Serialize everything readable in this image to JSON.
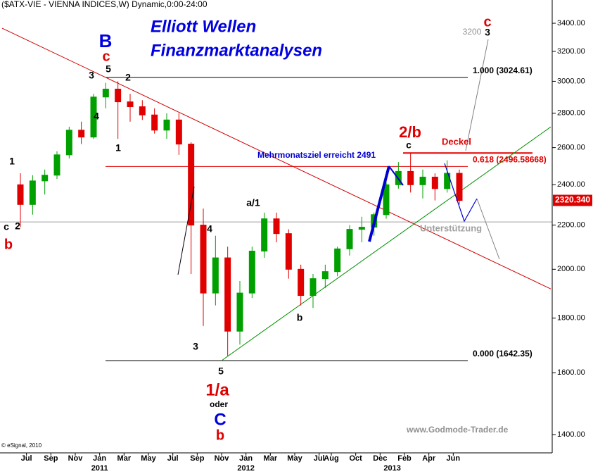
{
  "chart_data": {
    "type": "candlestick",
    "title": "($ATX-VIE - VIENNA INDICES,W) Dynamic,0:00-24:00",
    "headline": [
      "Elliott Wellen",
      "Finanzmarktanalysen"
    ],
    "source": "www.Godmode-Trader.de",
    "copyright": "© eSignal, 2010",
    "x": [
      "2010-06",
      "2010-07",
      "2010-08",
      "2010-09",
      "2010-10",
      "2010-11",
      "2010-12",
      "2011-01",
      "2011-02",
      "2011-03",
      "2011-04",
      "2011-05",
      "2011-06",
      "2011-07",
      "2011-08",
      "2011-09",
      "2011-10",
      "2011-11",
      "2011-12",
      "2012-01",
      "2012-02",
      "2012-03",
      "2012-04",
      "2012-05",
      "2012-06",
      "2012-07",
      "2012-08",
      "2012-09",
      "2012-10",
      "2012-11",
      "2012-12",
      "2013-01",
      "2013-02",
      "2013-03",
      "2013-04",
      "2013-05",
      "2013-06"
    ],
    "open": [
      2400,
      2300,
      2420,
      2450,
      2560,
      2700,
      2660,
      2900,
      2950,
      2870,
      2840,
      2790,
      2700,
      2760,
      2620,
      2200,
      1900,
      2050,
      1750,
      1900,
      2080,
      2230,
      2160,
      2000,
      1890,
      1960,
      1990,
      2090,
      2180,
      2190,
      2250,
      2400,
      2470,
      2400,
      2440,
      2380,
      2460
    ],
    "high": [
      2460,
      2450,
      2480,
      2580,
      2720,
      2750,
      2920,
      2990,
      3000,
      2920,
      2880,
      2830,
      2800,
      2800,
      2630,
      2280,
      2150,
      2100,
      1950,
      2100,
      2260,
      2260,
      2180,
      2020,
      1980,
      2020,
      2100,
      2200,
      2240,
      2260,
      2420,
      2520,
      2570,
      2480,
      2460,
      2530,
      2480
    ],
    "low": [
      2190,
      2250,
      2350,
      2430,
      2540,
      2620,
      2650,
      2830,
      2650,
      2750,
      2760,
      2680,
      2650,
      2560,
      1980,
      1770,
      1850,
      1660,
      1700,
      1880,
      2050,
      2120,
      1960,
      1850,
      1840,
      1920,
      1970,
      2060,
      2120,
      2150,
      2230,
      2380,
      2360,
      2330,
      2320,
      2360,
      2300
    ],
    "close": [
      2300,
      2420,
      2450,
      2560,
      2700,
      2660,
      2900,
      2950,
      2870,
      2840,
      2790,
      2700,
      2760,
      2620,
      2200,
      1900,
      2050,
      1750,
      1900,
      2080,
      2230,
      2160,
      2000,
      1890,
      1960,
      1990,
      2090,
      2180,
      2190,
      2250,
      2400,
      2470,
      2400,
      2440,
      2380,
      2460,
      2320
    ],
    "up_color": "#00a000",
    "down_color": "#e00000",
    "xlim": [
      "2010-05",
      "2014-02"
    ],
    "xticks": [
      {
        "value": "2010-07",
        "label": "Jul"
      },
      {
        "value": "2010-09",
        "label": "Sep"
      },
      {
        "value": "2010-11",
        "label": "Nov"
      },
      {
        "value": "2011-01",
        "label": "Jan"
      },
      {
        "value": "2011-03",
        "label": "Mar"
      },
      {
        "value": "2011-05",
        "label": "May"
      },
      {
        "value": "2011-07",
        "label": "Jul"
      },
      {
        "value": "2011-09",
        "label": "Sep"
      },
      {
        "value": "2011-11",
        "label": "Nov"
      },
      {
        "value": "2012-01",
        "label": "Jan"
      },
      {
        "value": "2012-03",
        "label": "Mar"
      },
      {
        "value": "2012-05",
        "label": "May"
      },
      {
        "value": "2012-07",
        "label": "Jul"
      },
      {
        "value": "2012-08",
        "label": "Aug"
      },
      {
        "value": "2012-10",
        "label": "Oct"
      },
      {
        "value": "2012-12",
        "label": "Dec"
      },
      {
        "value": "2013-02",
        "label": "Feb"
      },
      {
        "value": "2013-04",
        "label": "Apr"
      },
      {
        "value": "2013-06",
        "label": "Jun"
      }
    ],
    "year_ticks": [
      {
        "value": "2011-01",
        "label": "2011"
      },
      {
        "value": "2012-01",
        "label": "2012"
      },
      {
        "value": "2013-01",
        "label": "2013"
      }
    ],
    "ylim": [
      1346,
      3575
    ],
    "log_scale": true,
    "yticks": [
      {
        "value": 1400,
        "label": "1400.00"
      },
      {
        "value": 1600,
        "label": "1600.00"
      },
      {
        "value": 1800,
        "label": "1800.00"
      },
      {
        "value": 2000,
        "label": "2000.00"
      },
      {
        "value": 2200,
        "label": "2200.00"
      },
      {
        "value": 2400,
        "label": "2400.00"
      },
      {
        "value": 2600,
        "label": "2600.00"
      },
      {
        "value": 2800,
        "label": "2800.00"
      },
      {
        "value": 3000,
        "label": "3000.00"
      },
      {
        "value": 3200,
        "label": "3200.00"
      },
      {
        "value": 3400,
        "label": "3400.00"
      }
    ],
    "levels": [
      {
        "value": 3024.61,
        "label": "1.000 (3024.61)",
        "color": "#000000"
      },
      {
        "value": 2496.58668,
        "label": "0.618 (2496.58668)",
        "color": "#e00000"
      },
      {
        "value": 1642.35,
        "label": "0.000 (1642.35)",
        "color": "#000000"
      },
      {
        "value": 2570,
        "label": "Deckel",
        "color": "#e00000"
      },
      {
        "value": 2215,
        "label": "Unterstützung",
        "color": "#a0a0a0"
      }
    ],
    "trendlines": [
      {
        "color": "#d00000",
        "x": [
          "2010-05",
          "2014-02"
        ],
        "y": [
          3364,
          1917
        ]
      },
      {
        "color": "#009000",
        "x": [
          "2011-11",
          "2014-02"
        ],
        "y": [
          1642.35,
          2719
        ]
      }
    ],
    "last_price": {
      "value": 2320.34,
      "label": "2320.340",
      "color": "#e00000"
    },
    "annotations": [
      "3",
      "5",
      "2",
      "B",
      "c",
      "4",
      "1",
      "1",
      "c",
      "2",
      "b",
      "4",
      "a/1",
      "3",
      "5",
      "1/a",
      "oder",
      "C",
      "b",
      "b",
      "c",
      "2/b",
      "c",
      "3",
      "3200",
      "Mehrmonatsziel erreicht 2491"
    ]
  }
}
